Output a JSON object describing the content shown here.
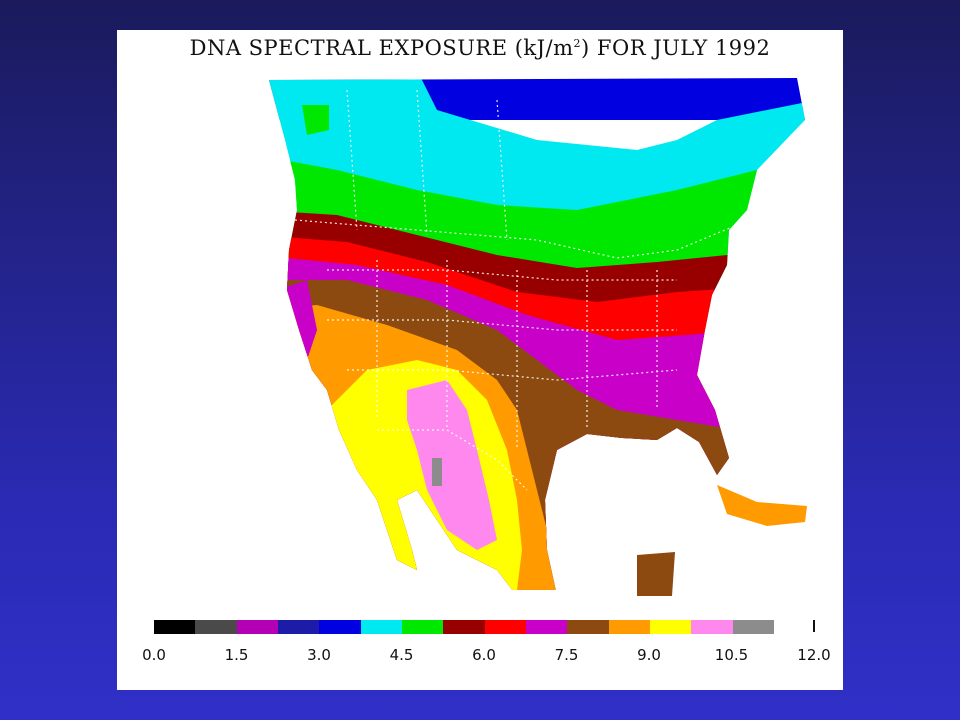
{
  "title": {
    "prefix": "DNA SPECTRAL EXPOSURE (kJ/m",
    "superscript": "2",
    "suffix": ") FOR JULY 1992"
  },
  "legend": {
    "colors": [
      "#000000",
      "#4a4a4a",
      "#b400b4",
      "#1c1ca8",
      "#0000e0",
      "#00e8f0",
      "#00e800",
      "#980000",
      "#ff0000",
      "#c800c8",
      "#8c4a10",
      "#ff9a00",
      "#ffff00",
      "#ff88ee",
      "#8c8c8c"
    ],
    "tick_labels": [
      "0.0",
      "1.5",
      "3.0",
      "4.5",
      "6.0",
      "7.5",
      "9.0",
      "10.5",
      "12.0"
    ],
    "tick_values": [
      0.0,
      1.5,
      3.0,
      4.5,
      6.0,
      7.5,
      9.0,
      10.5,
      12.0
    ],
    "range": [
      0.0,
      12.0
    ],
    "units": "kJ/m2"
  }
}
